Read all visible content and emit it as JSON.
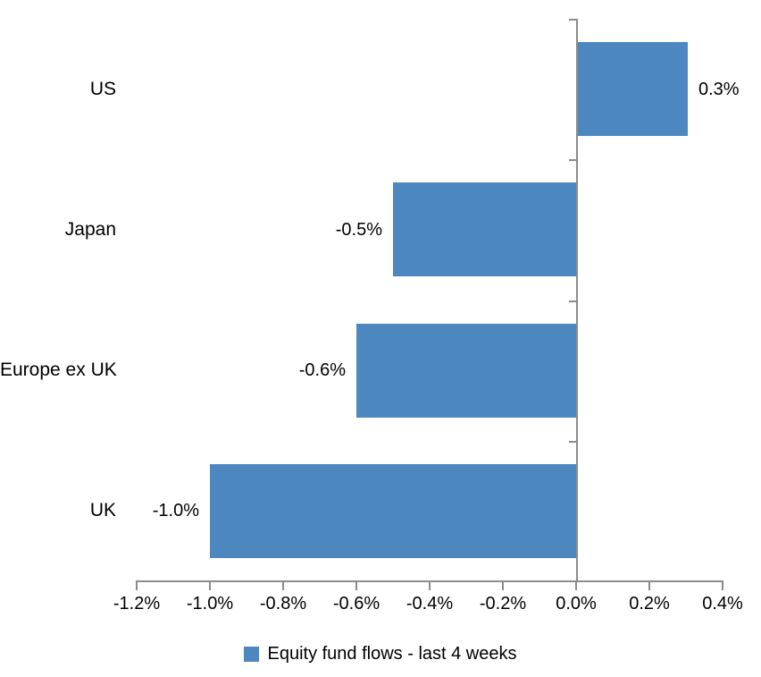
{
  "chart_data": {
    "type": "bar",
    "orientation": "horizontal",
    "title": "",
    "xlabel": "",
    "ylabel": "",
    "categories": [
      "US",
      "Japan",
      "Europe ex UK",
      "UK"
    ],
    "series": [
      {
        "name": "Equity fund flows - last 4 weeks",
        "values": [
          0.3,
          -0.5,
          -0.6,
          -1.0
        ],
        "data_labels": [
          "0.3%",
          "-0.5%",
          "-0.6%",
          "-1.0%"
        ]
      }
    ],
    "xlim": [
      -1.2,
      0.4
    ],
    "x_tick_step": 0.2,
    "x_tick_labels": [
      "-1.2%",
      "-1.0%",
      "-0.8%",
      "-0.6%",
      "-0.4%",
      "-0.2%",
      "0.0%",
      "0.2%",
      "0.4%"
    ],
    "grid": false,
    "legend_position": "bottom",
    "data_label_position": "outside-end",
    "colors": {
      "bar": "#4D87C0",
      "axis": "#8C8C8C",
      "text": "#000000",
      "background": "#FFFFFF"
    }
  },
  "legend": {
    "label": "Equity fund flows - last 4 weeks",
    "swatch_color": "#4D87C0"
  }
}
